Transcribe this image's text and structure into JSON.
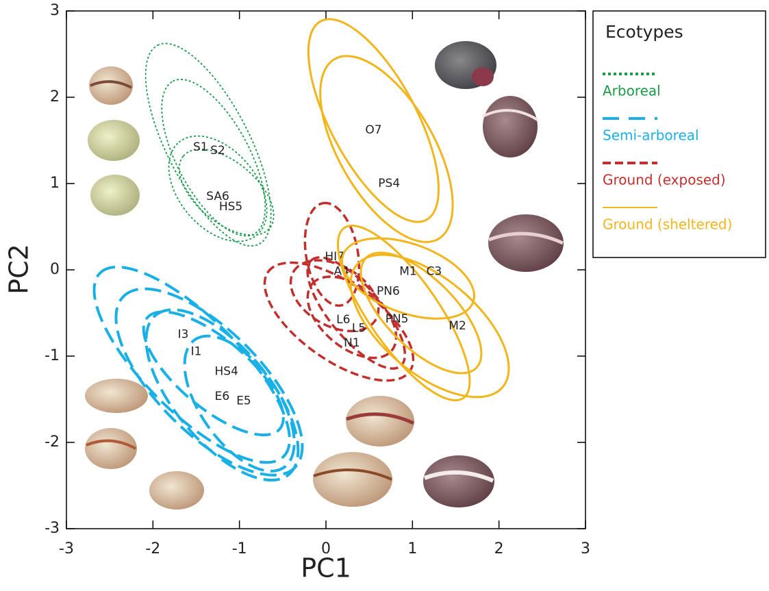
{
  "chart_data": {
    "type": "scatter",
    "xlabel": "PC1",
    "ylabel": "PC2",
    "xlim": [
      -3,
      3
    ],
    "ylim": [
      -3,
      3
    ],
    "xticks": [
      -3,
      -2,
      -1,
      0,
      1,
      2,
      3
    ],
    "yticks": [
      -3,
      -2,
      -1,
      0,
      1,
      2,
      3
    ],
    "legend_title": "Ecotypes",
    "legend": "right-outside",
    "series": [
      {
        "name": "Arboreal",
        "color": "#1a9a4a",
        "line_style": "dotted",
        "labels": [
          "S1",
          "S2",
          "SA6",
          "HS5"
        ],
        "x": [
          -1.45,
          -1.25,
          -1.25,
          -1.1
        ],
        "values": [
          1.42,
          1.38,
          0.85,
          0.73
        ],
        "ellipses": [
          {
            "cx": -1.36,
            "cy": 1.45,
            "rx": 1.29,
            "ry": 0.48,
            "angle": 117
          },
          {
            "cx": -1.3,
            "cy": 1.3,
            "rx": 1.0,
            "ry": 0.42,
            "angle": 118
          },
          {
            "cx": -1.25,
            "cy": 0.94,
            "rx": 0.7,
            "ry": 0.45,
            "angle": 130
          },
          {
            "cx": -1.15,
            "cy": 0.9,
            "rx": 0.65,
            "ry": 0.35,
            "angle": 140
          }
        ]
      },
      {
        "name": "Semi-arboreal",
        "color": "#1ab0e6",
        "line_style": "longdash",
        "labels": [
          "I3",
          "I1",
          "HS4",
          "E6",
          "E5"
        ],
        "x": [
          -1.65,
          -1.5,
          -1.15,
          -1.2,
          -0.95
        ],
        "values": [
          -0.75,
          -0.95,
          -1.18,
          -1.47,
          -1.52
        ],
        "ellipses": [
          {
            "cx": -1.55,
            "cy": -1.1,
            "rx": 1.5,
            "ry": 0.55,
            "angle": 135
          },
          {
            "cx": -1.35,
            "cy": -1.3,
            "rx": 1.4,
            "ry": 0.6,
            "angle": 135
          },
          {
            "cx": -1.2,
            "cy": -1.45,
            "rx": 1.2,
            "ry": 0.55,
            "angle": 130
          },
          {
            "cx": -1.0,
            "cy": -1.55,
            "rx": 0.9,
            "ry": 0.45,
            "angle": 125
          },
          {
            "cx": -1.3,
            "cy": -1.2,
            "rx": 1.0,
            "ry": 0.4,
            "angle": 140
          }
        ]
      },
      {
        "name": "Ground (exposed)",
        "color": "#c0302e",
        "line_style": "dashed",
        "labels": [
          "HI7",
          "A4",
          "L6",
          "L5",
          "N1"
        ],
        "x": [
          0.1,
          0.18,
          0.2,
          0.38,
          0.3
        ],
        "values": [
          0.15,
          -0.02,
          -0.58,
          -0.68,
          -0.85
        ],
        "ellipses": [
          {
            "cx": 0.07,
            "cy": 0.18,
            "rx": 0.6,
            "ry": 0.3,
            "angle": 100
          },
          {
            "cx": 0.15,
            "cy": -0.6,
            "rx": 1.0,
            "ry": 0.45,
            "angle": 145
          },
          {
            "cx": 0.3,
            "cy": -0.55,
            "rx": 0.6,
            "ry": 0.35,
            "angle": 140
          },
          {
            "cx": 0.1,
            "cy": -0.3,
            "rx": 0.55,
            "ry": 0.35,
            "angle": 150
          },
          {
            "cx": 0.35,
            "cy": -0.5,
            "rx": 0.8,
            "ry": 0.3,
            "angle": 130
          }
        ]
      },
      {
        "name": "Ground (sheltered)",
        "color": "#f2b51c",
        "line_style": "solid",
        "labels": [
          "O7",
          "PS4",
          "PN6",
          "PN5",
          "M1",
          "C3",
          "M2"
        ],
        "x": [
          0.55,
          0.73,
          0.72,
          0.82,
          0.95,
          1.25,
          1.52
        ],
        "values": [
          1.62,
          1.0,
          -0.25,
          -0.57,
          -0.02,
          -0.02,
          -0.65
        ],
        "ellipses": [
          {
            "cx": 0.55,
            "cy": 1.73,
            "rx": 1.3,
            "ry": 0.5,
            "angle": 118
          },
          {
            "cx": 0.7,
            "cy": 1.4,
            "rx": 1.2,
            "ry": 0.55,
            "angle": 120
          },
          {
            "cx": 1.2,
            "cy": -0.65,
            "rx": 1.1,
            "ry": 0.55,
            "angle": 140
          },
          {
            "cx": 0.9,
            "cy": -0.5,
            "rx": 1.2,
            "ry": 0.4,
            "angle": 125
          },
          {
            "cx": 0.95,
            "cy": -0.1,
            "rx": 0.8,
            "ry": 0.4,
            "angle": 160
          },
          {
            "cx": 1.1,
            "cy": -0.5,
            "rx": 0.9,
            "ry": 0.4,
            "angle": 135
          }
        ]
      }
    ]
  }
}
